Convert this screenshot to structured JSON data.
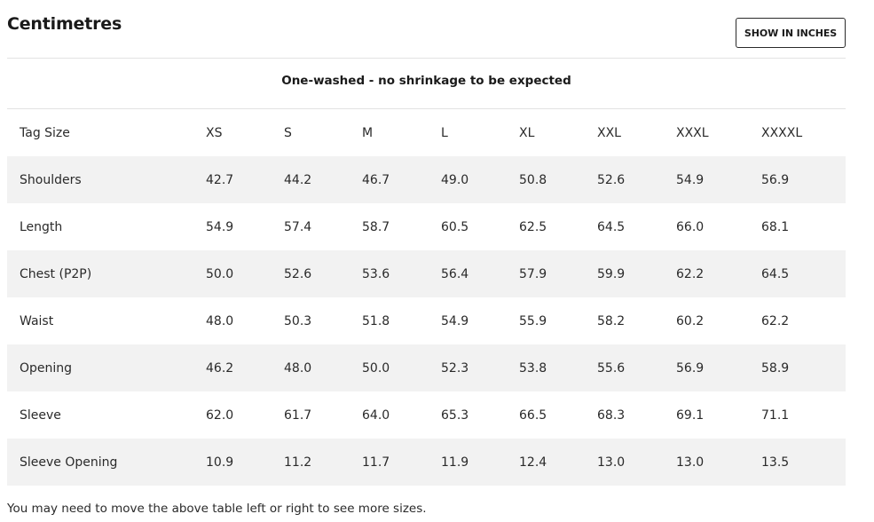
{
  "header": {
    "title": "Centimetres",
    "toggle_label": "SHOW IN INCHES"
  },
  "caption": "One-washed - no shrinkage to be expected",
  "table": {
    "columns": [
      "Tag Size",
      "XS",
      "S",
      "M",
      "L",
      "XL",
      "XXL",
      "XXXL",
      "XXXXL"
    ],
    "rows": [
      [
        "Shoulders",
        "42.7",
        "44.2",
        "46.7",
        "49.0",
        "50.8",
        "52.6",
        "54.9",
        "56.9"
      ],
      [
        "Length",
        "54.9",
        "57.4",
        "58.7",
        "60.5",
        "62.5",
        "64.5",
        "66.0",
        "68.1"
      ],
      [
        "Chest (P2P)",
        "50.0",
        "52.6",
        "53.6",
        "56.4",
        "57.9",
        "59.9",
        "62.2",
        "64.5"
      ],
      [
        "Waist",
        "48.0",
        "50.3",
        "51.8",
        "54.9",
        "55.9",
        "58.2",
        "60.2",
        "62.2"
      ],
      [
        "Opening",
        "46.2",
        "48.0",
        "50.0",
        "52.3",
        "53.8",
        "55.6",
        "56.9",
        "58.9"
      ],
      [
        "Sleeve",
        "62.0",
        "61.7",
        "64.0",
        "65.3",
        "66.5",
        "68.3",
        "69.1",
        "71.1"
      ],
      [
        "Sleeve Opening",
        "10.9",
        "11.2",
        "11.7",
        "11.9",
        "12.4",
        "13.0",
        "13.0",
        "13.5"
      ]
    ]
  },
  "footnote": "You may need to move the above table left or right to see more sizes.",
  "colors": {
    "shaded_row": "#f2f2f2",
    "rule": "#e3e3e3",
    "text": "#2a2a2a"
  }
}
